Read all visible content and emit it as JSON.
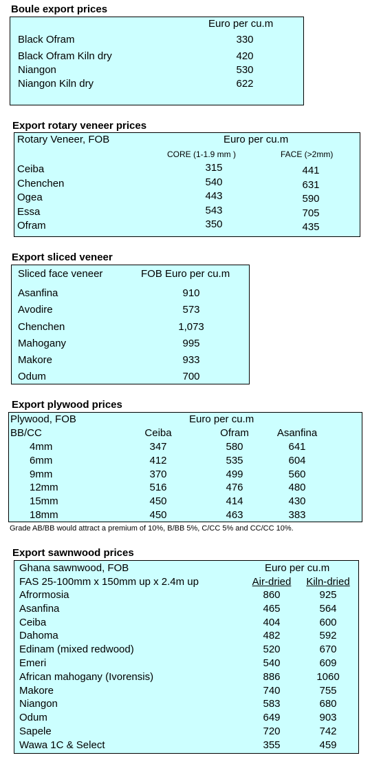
{
  "boule": {
    "title": "Boule export prices",
    "header": "Euro per cu.m",
    "rows": [
      [
        "Black Ofram",
        "330"
      ],
      [
        "Black Ofram  Kiln dry",
        "420"
      ],
      [
        "Niangon",
        "530"
      ],
      [
        "Niangon Kiln dry",
        "622"
      ]
    ]
  },
  "rotary": {
    "title": "Export rotary veneer prices",
    "header": "Rotary Veneer,  FOB",
    "unit": "Euro  per cu.m",
    "columns": [
      "CORE (1-1.9 mm )",
      "FACE (>2mm)"
    ],
    "rows": [
      [
        "Ceiba",
        "315",
        "441"
      ],
      [
        "Chenchen",
        "540",
        "631"
      ],
      [
        "Ogea",
        "443",
        "590"
      ],
      [
        "Essa",
        "543",
        "705"
      ],
      [
        "Ofram",
        "350",
        "435"
      ]
    ]
  },
  "sliced": {
    "title": "Export sliced veneer",
    "headers": [
      "Sliced face veneer",
      "FOB Euro per cu.m"
    ],
    "rows": [
      [
        "Asanfina",
        "910"
      ],
      [
        "Avodire",
        "573"
      ],
      [
        "Chenchen",
        "1,073"
      ],
      [
        "Mahogany",
        "995"
      ],
      [
        "Makore",
        "933"
      ],
      [
        "Odum",
        "700"
      ]
    ]
  },
  "plywood": {
    "title": "Export plywood prices",
    "header": "Plywood, FOB",
    "unit": "Euro per cu.m",
    "grade": "BB/CC",
    "columns": [
      "Ceiba",
      "Ofram",
      "Asanfina"
    ],
    "rows": [
      [
        "4mm",
        "347",
        "580",
        "641"
      ],
      [
        "6mm",
        "412",
        "535",
        "604"
      ],
      [
        "9mm",
        "370",
        "499",
        "560"
      ],
      [
        "12mm",
        "516",
        "476",
        "480"
      ],
      [
        "15mm",
        "450",
        "414",
        "430"
      ],
      [
        "18mm",
        "450",
        "463",
        "383"
      ]
    ],
    "note": "Grade AB/BB would attract a premium of 10%, B/BB 5%, C/CC 5% and CC/CC 10%."
  },
  "sawnwood": {
    "title": "Export sawnwood prices",
    "header": "Ghana sawnwood, FOB",
    "unit": "Euro per cu.m",
    "spec": "FAS 25-100mm x 150mm up x 2.4m up",
    "columns": [
      "Air-dried",
      "Kiln-dried"
    ],
    "rows": [
      [
        "Afrormosia",
        "860",
        "925"
      ],
      [
        "Asanfina",
        "465",
        "564"
      ],
      [
        "Ceiba",
        "404",
        "600"
      ],
      [
        "Dahoma",
        "482",
        "592"
      ],
      [
        "Edinam (mixed redwood)",
        "520",
        "670"
      ],
      [
        "Emeri",
        "540",
        "609"
      ],
      [
        "African mahogany (Ivorensis)",
        "886",
        "1060"
      ],
      [
        "Makore",
        "740",
        "755"
      ],
      [
        "Niangon",
        "583",
        "680"
      ],
      [
        "Odum",
        "649",
        "903"
      ],
      [
        "Sapele",
        "720",
        "742"
      ],
      [
        "Wawa 1C & Select",
        "355",
        "459"
      ]
    ]
  }
}
